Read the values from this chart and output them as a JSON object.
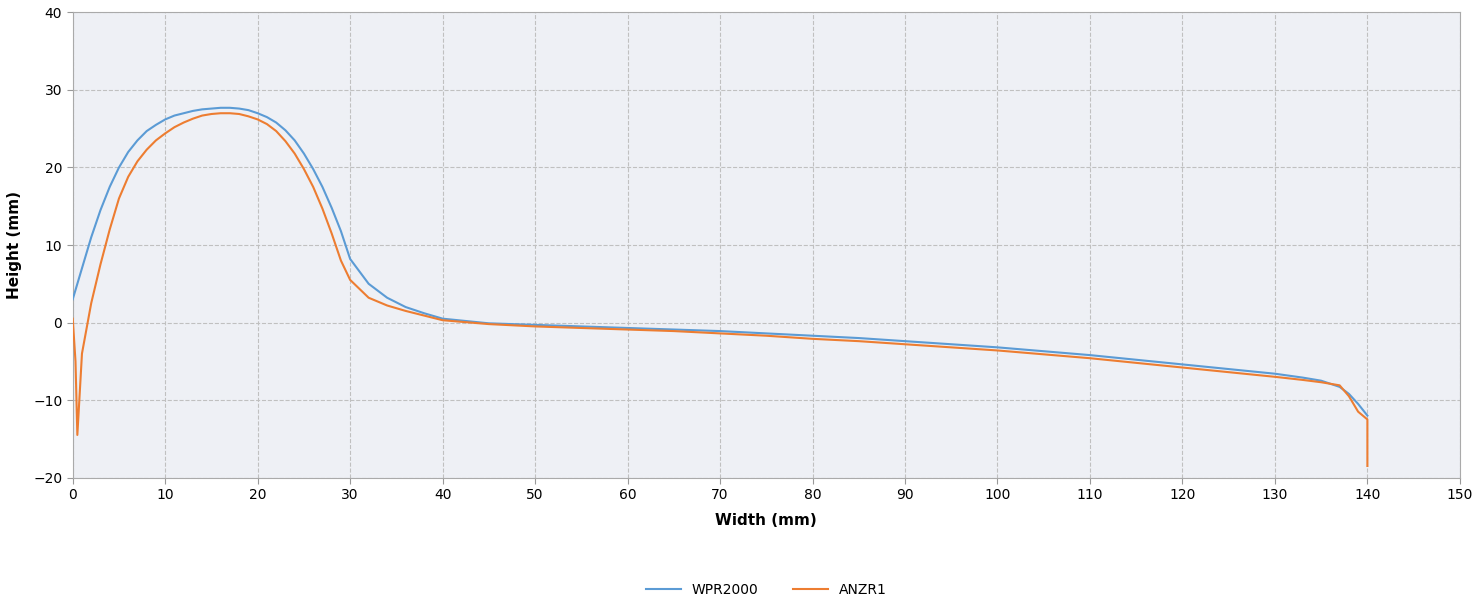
{
  "xlabel": "Width (mm)",
  "ylabel": "Height (mm)",
  "xlim": [
    0,
    150
  ],
  "ylim": [
    -20,
    40
  ],
  "xticks": [
    0,
    10,
    20,
    30,
    40,
    50,
    60,
    70,
    80,
    90,
    100,
    110,
    120,
    130,
    140,
    150
  ],
  "yticks": [
    -20,
    -10,
    0,
    10,
    20,
    30,
    40
  ],
  "grid_color": "#c0c0c0",
  "bg_color": "#ffffff",
  "plot_bg_color": "#eef0f5",
  "wpr2000_color": "#5b9bd5",
  "anzr1_color": "#ed7d31",
  "legend_labels": [
    "WPR2000",
    "ANZR1"
  ],
  "wpr2000_x": [
    0,
    1,
    2,
    3,
    4,
    5,
    6,
    7,
    8,
    9,
    10,
    11,
    12,
    13,
    14,
    15,
    16,
    17,
    18,
    19,
    20,
    21,
    22,
    23,
    24,
    25,
    26,
    27,
    28,
    29,
    30,
    32,
    34,
    36,
    38,
    40,
    45,
    50,
    55,
    60,
    65,
    70,
    75,
    80,
    85,
    90,
    95,
    100,
    105,
    110,
    115,
    120,
    125,
    130,
    133,
    135,
    137,
    138,
    139,
    140
  ],
  "wpr2000_y": [
    3.0,
    7.0,
    11.0,
    14.5,
    17.5,
    20.0,
    22.0,
    23.5,
    24.7,
    25.5,
    26.2,
    26.7,
    27.0,
    27.3,
    27.5,
    27.6,
    27.7,
    27.7,
    27.6,
    27.4,
    27.0,
    26.5,
    25.8,
    24.8,
    23.5,
    21.8,
    19.8,
    17.5,
    14.8,
    11.8,
    8.2,
    5.0,
    3.2,
    2.0,
    1.2,
    0.5,
    -0.1,
    -0.3,
    -0.5,
    -0.7,
    -0.9,
    -1.1,
    -1.4,
    -1.7,
    -2.0,
    -2.4,
    -2.8,
    -3.2,
    -3.7,
    -4.2,
    -4.8,
    -5.4,
    -6.0,
    -6.6,
    -7.1,
    -7.5,
    -8.3,
    -9.2,
    -10.5,
    -12.0
  ],
  "anzr1_x": [
    0,
    0.3,
    0.5,
    1,
    2,
    3,
    4,
    5,
    6,
    7,
    8,
    9,
    10,
    11,
    12,
    13,
    14,
    15,
    16,
    17,
    18,
    19,
    20,
    21,
    22,
    23,
    24,
    25,
    26,
    27,
    28,
    29,
    30,
    32,
    34,
    36,
    38,
    40,
    45,
    50,
    55,
    60,
    65,
    70,
    75,
    80,
    85,
    90,
    95,
    100,
    105,
    110,
    115,
    120,
    125,
    130,
    133,
    135,
    136,
    137,
    138,
    139,
    140,
    140.0
  ],
  "anzr1_y": [
    0.5,
    -5.0,
    -14.5,
    -4.0,
    2.5,
    7.5,
    12.0,
    16.0,
    18.8,
    20.8,
    22.3,
    23.5,
    24.4,
    25.2,
    25.8,
    26.3,
    26.7,
    26.9,
    27.0,
    27.0,
    26.9,
    26.6,
    26.2,
    25.6,
    24.7,
    23.4,
    21.8,
    19.8,
    17.5,
    14.7,
    11.5,
    8.0,
    5.5,
    3.2,
    2.2,
    1.5,
    0.9,
    0.3,
    -0.2,
    -0.5,
    -0.7,
    -0.9,
    -1.1,
    -1.4,
    -1.7,
    -2.1,
    -2.4,
    -2.8,
    -3.2,
    -3.6,
    -4.1,
    -4.6,
    -5.2,
    -5.8,
    -6.4,
    -7.0,
    -7.4,
    -7.7,
    -7.9,
    -8.1,
    -9.5,
    -11.5,
    -12.5,
    -18.5
  ]
}
